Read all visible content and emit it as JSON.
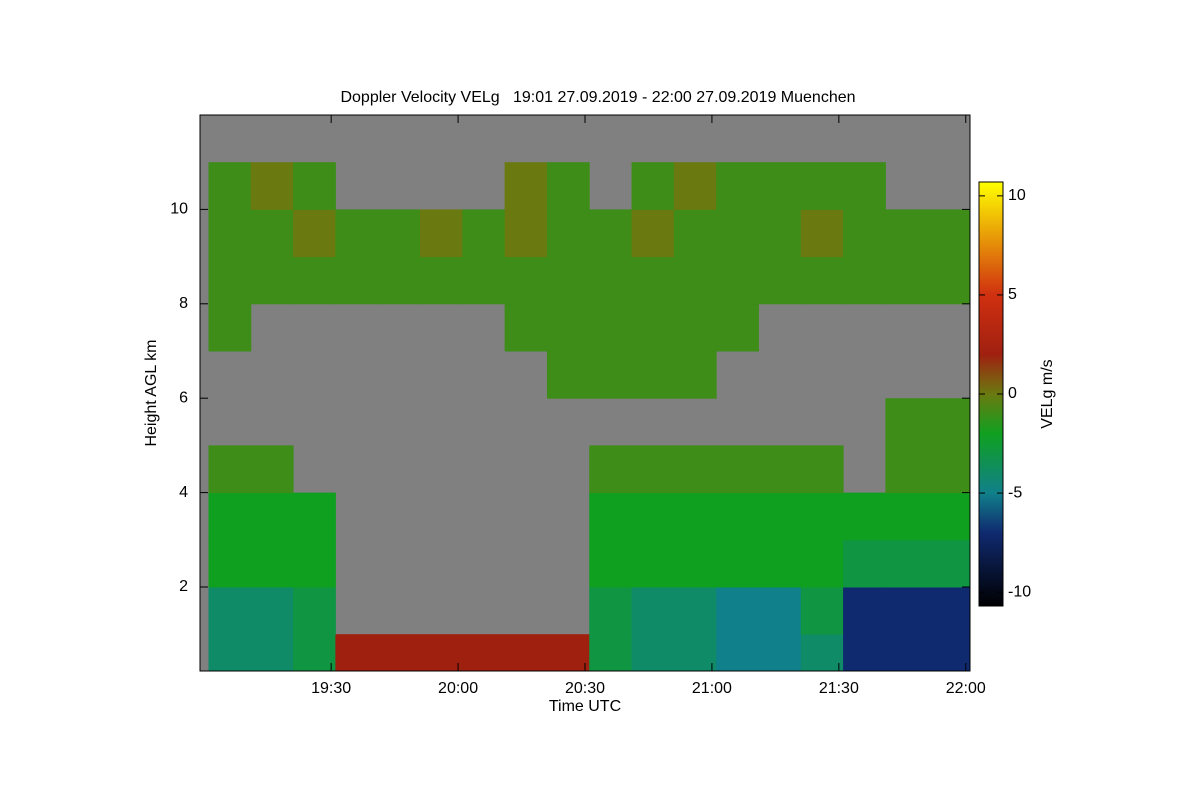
{
  "chart_data": {
    "type": "heatmap",
    "title": "Doppler Velocity VELg   19:01 27.09.2019 - 22:00 27.09.2019 Muenchen",
    "x_label": "Time UTC",
    "y_label": "Height AGL km",
    "colorbar_label": "VELg m/s",
    "xlim": [
      1139,
      1321
    ],
    "ylim": [
      0.22,
      12
    ],
    "xticks": [
      {
        "value": 1170,
        "label": "19:30"
      },
      {
        "value": 1200,
        "label": "20:00"
      },
      {
        "value": 1230,
        "label": "20:30"
      },
      {
        "value": 1260,
        "label": "21:00"
      },
      {
        "value": 1290,
        "label": "21:30"
      },
      {
        "value": 1320,
        "label": "22:00"
      }
    ],
    "yticks": [
      2,
      4,
      6,
      8,
      10
    ],
    "zlim": [
      -10.7,
      10.7
    ],
    "zticks": [
      10,
      5,
      0,
      -5,
      -10
    ],
    "colorscale": [
      [
        -10.7,
        "#000000"
      ],
      [
        -7,
        "#102a70"
      ],
      [
        -5,
        "#10808a"
      ],
      [
        -2,
        "#10a020"
      ],
      [
        0,
        "#6a7a10"
      ],
      [
        2,
        "#a02010"
      ],
      [
        5,
        "#d03010"
      ],
      [
        10.7,
        "#ffff00"
      ]
    ],
    "x": [
      1146,
      1156,
      1166,
      1176,
      1186,
      1196,
      1206,
      1216,
      1226,
      1236,
      1246,
      1256,
      1266,
      1276,
      1286,
      1296,
      1306,
      1316
    ],
    "y": [
      0.5,
      1.5,
      2.5,
      3.5,
      4.5,
      5.5,
      6.5,
      7.5,
      8.5,
      9.5,
      10.5,
      11.5
    ],
    "z": [
      [
        -4,
        -4,
        -3,
        2,
        2,
        2,
        2,
        2,
        2,
        -3,
        -4,
        -4,
        -5,
        -5,
        -4,
        -7,
        -7,
        -7
      ],
      [
        -4,
        -4,
        -3,
        null,
        null,
        null,
        null,
        null,
        null,
        -3,
        -4,
        -4,
        -5,
        -5,
        -3,
        -7,
        -7,
        -7
      ],
      [
        -2,
        -2,
        -2,
        null,
        null,
        null,
        null,
        null,
        null,
        -2,
        -2,
        -2,
        -2,
        -2,
        -2,
        -3,
        -3,
        -3
      ],
      [
        -2,
        -2,
        -2,
        null,
        null,
        null,
        null,
        null,
        null,
        -2,
        -2,
        -2,
        -2,
        -2,
        -2,
        -2,
        -2,
        -2
      ],
      [
        -1,
        -1,
        null,
        null,
        null,
        null,
        null,
        null,
        null,
        -1,
        -1,
        -1,
        -1,
        -1,
        -1,
        null,
        -1,
        -1
      ],
      [
        null,
        null,
        null,
        null,
        null,
        null,
        null,
        null,
        null,
        null,
        null,
        null,
        null,
        null,
        null,
        null,
        -1,
        -1
      ],
      [
        null,
        null,
        null,
        null,
        null,
        null,
        null,
        null,
        -1,
        -1,
        -1,
        -1,
        null,
        null,
        null,
        null,
        null,
        null
      ],
      [
        -1,
        null,
        null,
        null,
        null,
        null,
        null,
        -1,
        -1,
        -1,
        -1,
        -1,
        -1,
        null,
        null,
        null,
        null,
        null
      ],
      [
        -1,
        -1,
        -1,
        -1,
        -1,
        -1,
        -1,
        -1,
        -1,
        -1,
        -1,
        -1,
        -1,
        -1,
        -1,
        -1,
        -1,
        -1
      ],
      [
        -1,
        -1,
        0,
        -1,
        -1,
        0,
        -1,
        0,
        -1,
        -1,
        0,
        -1,
        -1,
        -1,
        0,
        -1,
        -1,
        -1
      ],
      [
        -1,
        0,
        -1,
        null,
        null,
        null,
        null,
        0,
        -1,
        null,
        -1,
        0,
        -1,
        -1,
        -1,
        -1,
        null,
        null
      ],
      [
        null,
        null,
        null,
        null,
        null,
        null,
        null,
        null,
        null,
        null,
        null,
        null,
        null,
        null,
        null,
        null,
        null,
        null
      ]
    ]
  }
}
